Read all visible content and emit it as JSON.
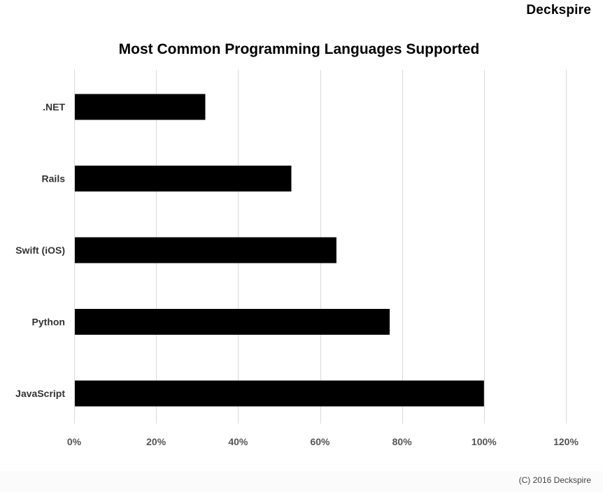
{
  "brand": "Deckspire",
  "footer": "(C) 2016 Deckspire",
  "chart_data": {
    "type": "bar",
    "orientation": "horizontal",
    "title": "Most Common Programming Languages Supported",
    "categories": [
      ".NET",
      "Rails",
      "Swift (iOS)",
      "Python",
      "JavaScript"
    ],
    "values": [
      32,
      53,
      64,
      77,
      100
    ],
    "value_unit": "%",
    "xlim": [
      0,
      120
    ],
    "x_ticks": [
      0,
      20,
      40,
      60,
      80,
      100,
      120
    ],
    "x_tick_labels": [
      "0%",
      "20%",
      "40%",
      "60%",
      "80%",
      "100%",
      "120%"
    ],
    "grid": "vertical",
    "bar_color": "#000000",
    "grid_color": "#d9d9d9",
    "legend": "none"
  }
}
